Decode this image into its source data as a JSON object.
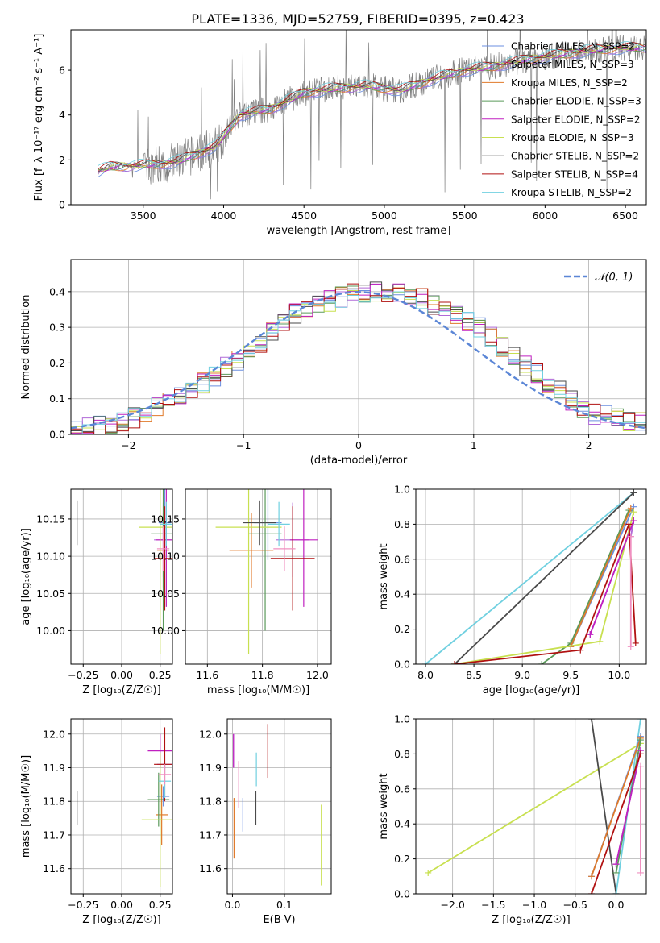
{
  "title": "PLATE=1336, MJD=52759, FIBERID=0395, z=0.423",
  "colors": {
    "chabrier_miles": "#6b8fe0",
    "salpeter_miles": "#b06ad8",
    "kroupa_miles": "#e07a2a",
    "chabrier_elodie": "#5a9a5a",
    "salpeter_elodie": "#c020c0",
    "kroupa_elodie": "#c8e050",
    "chabrier_stelib": "#4a4a4a",
    "salpeter_stelib": "#b01010",
    "kroupa_stelib": "#70d0e0",
    "pink": "#f090c0",
    "data": "#808080",
    "normal": "#5b86d6",
    "grid": "#b0b0b0"
  },
  "chart_data": [
    {
      "id": "spectrum",
      "type": "line",
      "xlabel": "wavelength [Angstrom, rest frame]",
      "ylabel": "Flux [f_λ 10⁻¹⁷ erg cm⁻² s⁻¹ A⁻¹]",
      "xlim": [
        3050,
        6630
      ],
      "ylim": [
        0,
        7.8
      ],
      "xticks": [
        3500,
        4000,
        4500,
        5000,
        5500,
        6000,
        6500
      ],
      "yticks": [
        0,
        2,
        4,
        6
      ],
      "grid": false,
      "legend_position": "right",
      "continuum": {
        "x": [
          3220,
          3300,
          3500,
          3700,
          3950,
          4100,
          4300,
          4500,
          4700,
          4900,
          5100,
          5300,
          5500,
          5700,
          5900,
          6100,
          6300,
          6500,
          6630
        ],
        "y": [
          1.5,
          1.7,
          1.75,
          1.9,
          2.6,
          4.0,
          4.3,
          5.0,
          5.2,
          5.3,
          5.1,
          5.6,
          6.0,
          6.2,
          6.5,
          6.7,
          6.9,
          7.0,
          7.0
        ]
      },
      "series": [
        {
          "name": "Chabrier MILES, N_SSP=2",
          "color_key": "chabrier_miles"
        },
        {
          "name": "Salpeter MILES, N_SSP=3",
          "color_key": "salpeter_miles"
        },
        {
          "name": "Kroupa MILES, N_SSP=2",
          "color_key": "kroupa_miles"
        },
        {
          "name": "Chabrier ELODIE, N_SSP=3",
          "color_key": "chabrier_elodie"
        },
        {
          "name": "Salpeter ELODIE, N_SSP=2",
          "color_key": "salpeter_elodie"
        },
        {
          "name": "Kroupa ELODIE, N_SSP=3",
          "color_key": "kroupa_elodie"
        },
        {
          "name": "Chabrier STELIB, N_SSP=2",
          "color_key": "chabrier_stelib"
        },
        {
          "name": "Salpeter STELIB, N_SSP=4",
          "color_key": "salpeter_stelib"
        },
        {
          "name": "Kroupa STELIB, N_SSP=2",
          "color_key": "kroupa_stelib"
        }
      ]
    },
    {
      "id": "residuals",
      "type": "area",
      "xlabel": "(data-model)/error",
      "ylabel": "Normed distribution",
      "xlim": [
        -2.5,
        2.5
      ],
      "ylim": [
        0,
        0.49
      ],
      "xticks": [
        -2,
        -1,
        0,
        1,
        2
      ],
      "yticks": [
        0.0,
        0.1,
        0.2,
        0.3,
        0.4
      ],
      "grid": true,
      "legend_position": "top-right",
      "normal_label": "𝒩(0, 1)",
      "bin_width": 0.1,
      "histogram_profile": {
        "x": [
          -2.5,
          -2.0,
          -1.5,
          -1.0,
          -0.5,
          0.0,
          0.5,
          1.0,
          1.5,
          2.0,
          2.5
        ],
        "y": [
          0.01,
          0.04,
          0.11,
          0.22,
          0.35,
          0.4,
          0.39,
          0.31,
          0.18,
          0.06,
          0.03
        ]
      }
    },
    {
      "id": "age_vs_Z",
      "type": "scatter",
      "xlabel": "Z [log₁₀(Z/Z☉)]",
      "ylabel": "age  [log₁₀(age/yr)]",
      "xlim": [
        -0.33,
        0.33
      ],
      "ylim": [
        9.955,
        10.19
      ],
      "xticks": [
        -0.25,
        0.0,
        0.25
      ],
      "yticks": [
        10.0,
        10.05,
        10.1,
        10.15
      ],
      "grid": true,
      "points": [
        {
          "x": 0.28,
          "y": 10.145,
          "xerr": 0.04,
          "yerr": 0.05,
          "color_key": "chabrier_miles"
        },
        {
          "x": 0.27,
          "y": 10.122,
          "xerr": 0.06,
          "yerr": 0.05,
          "color_key": "salpeter_miles"
        },
        {
          "x": 0.27,
          "y": 10.108,
          "xerr": 0.04,
          "yerr": 0.05,
          "color_key": "kroupa_miles"
        },
        {
          "x": 0.27,
          "y": 10.13,
          "xerr": 0.08,
          "yerr": 0.13,
          "color_key": "chabrier_elodie"
        },
        {
          "x": 0.29,
          "y": 10.122,
          "xerr": 0.07,
          "yerr": 0.09,
          "color_key": "salpeter_elodie"
        },
        {
          "x": 0.25,
          "y": 10.139,
          "xerr": 0.14,
          "yerr": 0.17,
          "color_key": "kroupa_elodie"
        },
        {
          "x": -0.29,
          "y": 10.145,
          "xerr": 0.0,
          "yerr": 0.03,
          "color_key": "chabrier_stelib"
        },
        {
          "x": 0.28,
          "y": 10.097,
          "xerr": 0.07,
          "yerr": 0.07,
          "color_key": "salpeter_stelib"
        },
        {
          "x": 0.29,
          "y": 10.143,
          "xerr": 0.04,
          "yerr": 0.03,
          "color_key": "kroupa_stelib"
        },
        {
          "x": 0.27,
          "y": 10.11,
          "xerr": 0.04,
          "yerr": 0.03,
          "color_key": "pink"
        }
      ]
    },
    {
      "id": "age_vs_mass",
      "type": "scatter",
      "xlabel": "mass [log₁₀(M/M☉)]",
      "ylabel": "",
      "xlim": [
        11.52,
        12.05
      ],
      "ylim": [
        9.955,
        10.19
      ],
      "xticks": [
        11.6,
        11.8,
        12.0
      ],
      "yticks": [
        10.0,
        10.05,
        10.1,
        10.15
      ],
      "grid": true,
      "points": [
        {
          "x": 11.82,
          "y": 10.145,
          "xerr": 0.05,
          "yerr": 0.05,
          "color_key": "chabrier_miles"
        },
        {
          "x": 11.91,
          "y": 10.122,
          "xerr": 0.06,
          "yerr": 0.05,
          "color_key": "salpeter_miles"
        },
        {
          "x": 11.76,
          "y": 10.108,
          "xerr": 0.08,
          "yerr": 0.05,
          "color_key": "kroupa_miles"
        },
        {
          "x": 11.81,
          "y": 10.13,
          "xerr": 0.06,
          "yerr": 0.13,
          "color_key": "chabrier_elodie"
        },
        {
          "x": 11.95,
          "y": 10.122,
          "xerr": 0.05,
          "yerr": 0.09,
          "color_key": "salpeter_elodie"
        },
        {
          "x": 11.75,
          "y": 10.139,
          "xerr": 0.12,
          "yerr": 0.17,
          "color_key": "kroupa_elodie"
        },
        {
          "x": 11.79,
          "y": 10.145,
          "xerr": 0.06,
          "yerr": 0.03,
          "color_key": "chabrier_stelib"
        },
        {
          "x": 11.91,
          "y": 10.097,
          "xerr": 0.08,
          "yerr": 0.07,
          "color_key": "salpeter_stelib"
        },
        {
          "x": 11.86,
          "y": 10.143,
          "xerr": 0.04,
          "yerr": 0.03,
          "color_key": "kroupa_stelib"
        },
        {
          "x": 11.88,
          "y": 10.11,
          "xerr": 0.04,
          "yerr": 0.03,
          "color_key": "pink"
        }
      ]
    },
    {
      "id": "weight_vs_age",
      "type": "line",
      "xlabel": "age  [log₁₀(age/yr)]",
      "ylabel": "mass weight",
      "xlim": [
        7.9,
        10.28
      ],
      "ylim": [
        0,
        1.0
      ],
      "xticks": [
        8.0,
        8.5,
        9.0,
        9.5,
        10.0
      ],
      "yticks": [
        0.0,
        0.2,
        0.4,
        0.6,
        0.8,
        1.0
      ],
      "grid": true,
      "series": [
        {
          "color_key": "kroupa_stelib",
          "x": [
            8.0,
            10.15
          ],
          "y": [
            0.0,
            0.98
          ]
        },
        {
          "color_key": "chabrier_stelib",
          "x": [
            8.3,
            10.15
          ],
          "y": [
            0.0,
            0.98
          ]
        },
        {
          "color_key": "chabrier_miles",
          "x": [
            9.5,
            10.15
          ],
          "y": [
            0.1,
            0.9
          ]
        },
        {
          "color_key": "chabrier_elodie",
          "x": [
            9.2,
            9.5,
            10.1
          ],
          "y": [
            0.0,
            0.12,
            0.88
          ]
        },
        {
          "color_key": "kroupa_miles",
          "x": [
            9.5,
            10.12
          ],
          "y": [
            0.1,
            0.89
          ]
        },
        {
          "color_key": "kroupa_elodie",
          "x": [
            8.3,
            9.8,
            10.15
          ],
          "y": [
            0.0,
            0.13,
            0.87
          ]
        },
        {
          "color_key": "salpeter_miles",
          "x": [
            9.7,
            10.15,
            10.12
          ],
          "y": [
            0.17,
            0.82,
            0.73
          ]
        },
        {
          "color_key": "salpeter_elodie",
          "x": [
            9.7,
            10.15
          ],
          "y": [
            0.17,
            0.82
          ]
        },
        {
          "color_key": "salpeter_stelib",
          "x": [
            8.3,
            9.6,
            10.1,
            10.17
          ],
          "y": [
            0.0,
            0.08,
            0.8,
            0.12
          ]
        },
        {
          "color_key": "pink",
          "x": [
            10.12,
            10.12
          ],
          "y": [
            0.73,
            0.1
          ]
        }
      ]
    },
    {
      "id": "mass_vs_Z",
      "type": "scatter",
      "xlabel": "Z [log₁₀(Z/Z☉)]",
      "ylabel": "mass [log₁₀(M/M☉)]",
      "xlim": [
        -0.33,
        0.33
      ],
      "ylim": [
        11.525,
        12.045
      ],
      "xticks": [
        -0.25,
        0.0,
        0.25
      ],
      "yticks": [
        11.6,
        11.7,
        11.8,
        11.9,
        12.0
      ],
      "grid": true,
      "points": [
        {
          "x": 0.27,
          "y": 11.815,
          "xerr": 0.04,
          "yerr": 0.03,
          "color_key": "chabrier_miles"
        },
        {
          "x": 0.28,
          "y": 11.91,
          "xerr": 0.05,
          "yerr": 0.03,
          "color_key": "salpeter_miles"
        },
        {
          "x": 0.26,
          "y": 11.76,
          "xerr": 0.04,
          "yerr": 0.09,
          "color_key": "kroupa_miles"
        },
        {
          "x": 0.24,
          "y": 11.805,
          "xerr": 0.07,
          "yerr": 0.08,
          "color_key": "chabrier_elodie"
        },
        {
          "x": 0.25,
          "y": 11.95,
          "xerr": 0.08,
          "yerr": 0.05,
          "color_key": "salpeter_elodie"
        },
        {
          "x": 0.25,
          "y": 11.745,
          "xerr": 0.12,
          "yerr": 0.2,
          "color_key": "kroupa_elodie"
        },
        {
          "x": -0.29,
          "y": 11.78,
          "xerr": 0.0,
          "yerr": 0.05,
          "color_key": "chabrier_stelib"
        },
        {
          "x": 0.28,
          "y": 11.91,
          "xerr": 0.07,
          "yerr": 0.11,
          "color_key": "salpeter_stelib"
        },
        {
          "x": 0.28,
          "y": 11.86,
          "xerr": 0.04,
          "yerr": 0.05,
          "color_key": "kroupa_stelib"
        },
        {
          "x": 0.28,
          "y": 11.88,
          "xerr": 0.04,
          "yerr": 0.03,
          "color_key": "pink"
        }
      ]
    },
    {
      "id": "mass_vs_EBV",
      "type": "scatter",
      "xlabel": "E(B-V)",
      "ylabel": "",
      "xlim": [
        -0.01,
        0.19
      ],
      "ylim": [
        11.525,
        12.045
      ],
      "xticks": [
        0.0,
        0.1
      ],
      "yticks": [
        11.6,
        11.7,
        11.8,
        11.9,
        12.0
      ],
      "grid": true,
      "points": [
        {
          "x": 0.02,
          "y": 11.76,
          "xerr": 0,
          "yerr": 0.05,
          "color_key": "chabrier_miles"
        },
        {
          "x": 0.002,
          "y": 11.95,
          "xerr": 0,
          "yerr": 0.05,
          "color_key": "salpeter_miles"
        },
        {
          "x": 0.003,
          "y": 11.72,
          "xerr": 0,
          "yerr": 0.09,
          "color_key": "kroupa_miles"
        },
        {
          "x": 0.002,
          "y": 11.95,
          "xerr": 0,
          "yerr": 0.05,
          "color_key": "salpeter_elodie"
        },
        {
          "x": 0.171,
          "y": 11.67,
          "xerr": 0,
          "yerr": 0.12,
          "color_key": "kroupa_elodie"
        },
        {
          "x": 0.045,
          "y": 11.78,
          "xerr": 0,
          "yerr": 0.05,
          "color_key": "chabrier_stelib"
        },
        {
          "x": 0.068,
          "y": 11.95,
          "xerr": 0,
          "yerr": 0.08,
          "color_key": "salpeter_stelib"
        },
        {
          "x": 0.046,
          "y": 11.895,
          "xerr": 0,
          "yerr": 0.05,
          "color_key": "kroupa_stelib"
        },
        {
          "x": 0.012,
          "y": 11.85,
          "xerr": 0,
          "yerr": 0.07,
          "color_key": "pink"
        }
      ]
    },
    {
      "id": "weight_vs_Z",
      "type": "line",
      "xlabel": "Z [log₁₀(Z/Z☉)]",
      "ylabel": "mass weight",
      "xlim": [
        -2.45,
        0.37
      ],
      "ylim": [
        0,
        1.0
      ],
      "xticks": [
        -2.0,
        -1.5,
        -1.0,
        -0.5,
        0.0
      ],
      "yticks": [
        0.0,
        0.2,
        0.4,
        0.6,
        0.8,
        1.0
      ],
      "grid": true,
      "series": [
        {
          "color_key": "kroupa_elodie",
          "x": [
            -2.3,
            0.3
          ],
          "y": [
            0.12,
            0.86
          ]
        },
        {
          "color_key": "chabrier_stelib",
          "x": [
            -0.3,
            0.0
          ],
          "y": [
            1.0,
            0.0
          ]
        },
        {
          "color_key": "kroupa_stelib",
          "x": [
            0.0,
            0.3
          ],
          "y": [
            0.0,
            1.0
          ]
        },
        {
          "color_key": "chabrier_miles",
          "x": [
            -0.3,
            0.3
          ],
          "y": [
            0.1,
            0.9
          ]
        },
        {
          "color_key": "kroupa_miles",
          "x": [
            -0.3,
            0.3
          ],
          "y": [
            0.1,
            0.89
          ]
        },
        {
          "color_key": "chabrier_elodie",
          "x": [
            0.0,
            0.3
          ],
          "y": [
            0.12,
            0.88
          ]
        },
        {
          "color_key": "salpeter_miles",
          "x": [
            0.0,
            0.3
          ],
          "y": [
            0.17,
            0.82
          ]
        },
        {
          "color_key": "salpeter_elodie",
          "x": [
            0.0,
            0.3
          ],
          "y": [
            0.17,
            0.82
          ]
        },
        {
          "color_key": "salpeter_stelib",
          "x": [
            -0.3,
            0.3
          ],
          "y": [
            0.0,
            0.8
          ]
        },
        {
          "color_key": "pink",
          "x": [
            0.3,
            0.3
          ],
          "y": [
            0.12,
            0.73
          ]
        }
      ]
    }
  ]
}
